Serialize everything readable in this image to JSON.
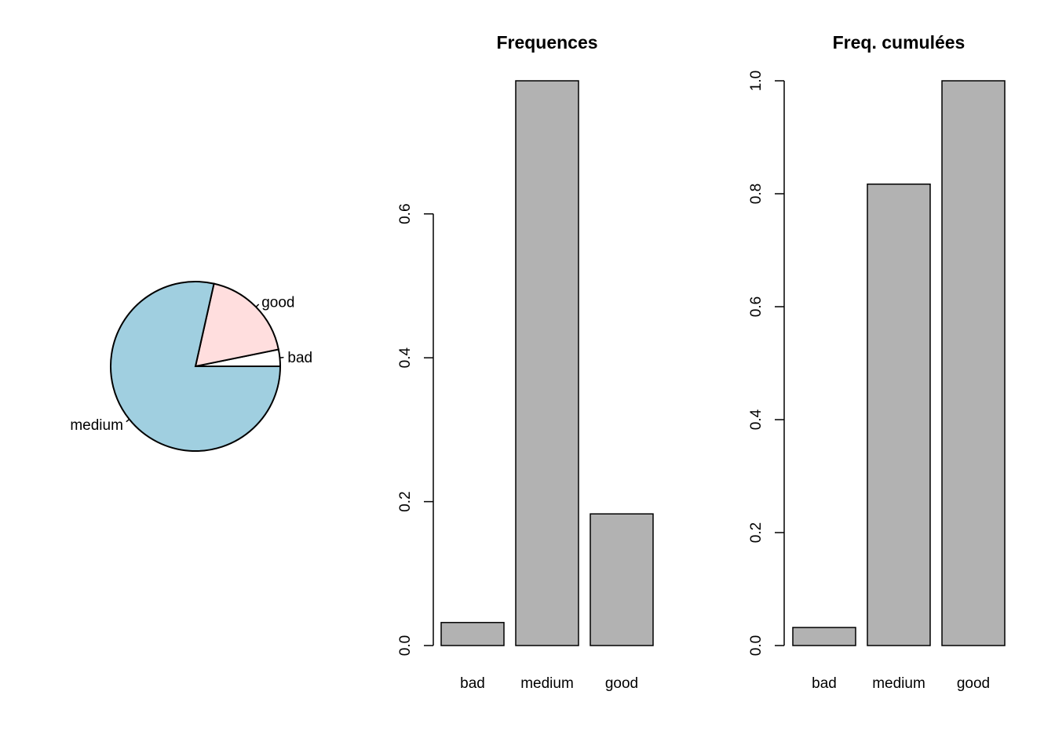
{
  "chart_data": [
    {
      "type": "pie",
      "title": "",
      "slices": [
        {
          "label": "bad",
          "value": 0.032,
          "color": "#FFFFFF"
        },
        {
          "label": "good",
          "value": 0.183,
          "color": "#FFDEDE"
        },
        {
          "label": "medium",
          "value": 0.785,
          "color": "#A0CFE0"
        }
      ]
    },
    {
      "type": "bar",
      "title": "Frequences",
      "categories": [
        "bad",
        "medium",
        "good"
      ],
      "values": [
        0.032,
        0.785,
        0.183
      ],
      "ylim": [
        0,
        0.785
      ],
      "yticks": [
        "0.0",
        "0.2",
        "0.4",
        "0.6"
      ],
      "bar_color": "#B2B2B2"
    },
    {
      "type": "bar",
      "title": "Freq. cumulées",
      "categories": [
        "bad",
        "medium",
        "good"
      ],
      "values": [
        0.032,
        0.817,
        1.0
      ],
      "ylim": [
        0,
        1.0
      ],
      "yticks": [
        "0.0",
        "0.2",
        "0.4",
        "0.6",
        "0.8",
        "1.0"
      ],
      "bar_color": "#B2B2B2"
    }
  ]
}
